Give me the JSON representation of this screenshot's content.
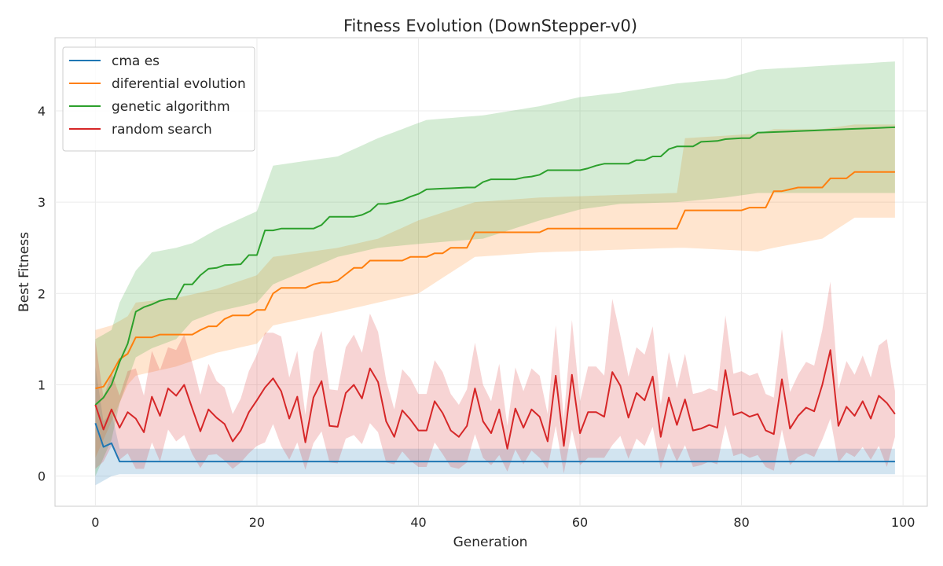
{
  "chart_data": {
    "type": "line",
    "title": "Fitness Evolution (DownStepper-v0)",
    "xlabel": "Generation",
    "ylabel": "Best Fitness",
    "xlim": [
      -5,
      103
    ],
    "ylim": [
      -0.33,
      4.8
    ],
    "xticks": [
      0,
      20,
      40,
      60,
      80,
      100
    ],
    "yticks": [
      0,
      1,
      2,
      3,
      4
    ],
    "grid": true,
    "legend_position": "top-left",
    "x_start": 0,
    "series": [
      {
        "name": "cma es",
        "color": "#1f77b4",
        "keyframes": [
          [
            0,
            0.58
          ],
          [
            1,
            0.32
          ],
          [
            2,
            0.36
          ],
          [
            3,
            0.16
          ],
          [
            99,
            0.16
          ]
        ],
        "band_keyframes": [
          [
            0,
            -0.1,
            1.2
          ],
          [
            1,
            -0.05,
            0.6
          ],
          [
            2,
            0.0,
            0.7
          ],
          [
            3,
            0.02,
            0.3
          ],
          [
            99,
            0.02,
            0.3
          ]
        ]
      },
      {
        "name": "diferential evolution",
        "color": "#ff7f0e",
        "keyframes": [
          [
            0,
            0.96
          ],
          [
            1,
            0.98
          ],
          [
            2,
            1.12
          ],
          [
            3,
            1.28
          ],
          [
            4,
            1.34
          ],
          [
            5,
            1.52
          ],
          [
            7,
            1.52
          ],
          [
            8,
            1.55
          ],
          [
            12,
            1.55
          ],
          [
            13,
            1.6
          ],
          [
            14,
            1.64
          ],
          [
            15,
            1.64
          ],
          [
            16,
            1.72
          ],
          [
            17,
            1.76
          ],
          [
            19,
            1.76
          ],
          [
            20,
            1.82
          ],
          [
            21,
            1.82
          ],
          [
            22,
            2.0
          ],
          [
            23,
            2.06
          ],
          [
            26,
            2.06
          ],
          [
            27,
            2.1
          ],
          [
            28,
            2.12
          ],
          [
            29,
            2.12
          ],
          [
            30,
            2.14
          ],
          [
            32,
            2.28
          ],
          [
            33,
            2.28
          ],
          [
            34,
            2.36
          ],
          [
            38,
            2.36
          ],
          [
            39,
            2.4
          ],
          [
            41,
            2.4
          ],
          [
            42,
            2.44
          ],
          [
            43,
            2.44
          ],
          [
            44,
            2.5
          ],
          [
            46,
            2.5
          ],
          [
            47,
            2.67
          ],
          [
            55,
            2.67
          ],
          [
            56,
            2.71
          ],
          [
            72,
            2.71
          ],
          [
            73,
            2.91
          ],
          [
            80,
            2.91
          ],
          [
            81,
            2.94
          ],
          [
            83,
            2.94
          ],
          [
            84,
            3.12
          ],
          [
            85,
            3.12
          ],
          [
            86,
            3.14
          ],
          [
            87,
            3.16
          ],
          [
            90,
            3.16
          ],
          [
            91,
            3.26
          ],
          [
            93,
            3.26
          ],
          [
            94,
            3.33
          ],
          [
            99,
            3.33
          ]
        ],
        "band_keyframes": [
          [
            0,
            0.2,
            1.6
          ],
          [
            2,
            0.6,
            1.65
          ],
          [
            4,
            1.0,
            1.75
          ],
          [
            5,
            1.1,
            1.9
          ],
          [
            10,
            1.2,
            1.95
          ],
          [
            15,
            1.35,
            2.05
          ],
          [
            20,
            1.45,
            2.2
          ],
          [
            22,
            1.65,
            2.4
          ],
          [
            30,
            1.8,
            2.5
          ],
          [
            35,
            1.9,
            2.6
          ],
          [
            40,
            2.0,
            2.8
          ],
          [
            47,
            2.4,
            3.0
          ],
          [
            55,
            2.45,
            3.05
          ],
          [
            72,
            2.5,
            3.1
          ],
          [
            73,
            2.5,
            3.7
          ],
          [
            82,
            2.46,
            3.75
          ],
          [
            84,
            2.5,
            3.8
          ],
          [
            90,
            2.6,
            3.8
          ],
          [
            94,
            2.83,
            3.85
          ],
          [
            99,
            2.83,
            3.85
          ]
        ]
      },
      {
        "name": "genetic algorithm",
        "color": "#2ca02c",
        "keyframes": [
          [
            0,
            0.78
          ],
          [
            1,
            0.86
          ],
          [
            2,
            1.0
          ],
          [
            3,
            1.25
          ],
          [
            4,
            1.45
          ],
          [
            5,
            1.8
          ],
          [
            6,
            1.85
          ],
          [
            7,
            1.88
          ],
          [
            8,
            1.92
          ],
          [
            9,
            1.94
          ],
          [
            10,
            1.94
          ],
          [
            11,
            2.1
          ],
          [
            12,
            2.1
          ],
          [
            13,
            2.2
          ],
          [
            14,
            2.27
          ],
          [
            15,
            2.28
          ],
          [
            16,
            2.31
          ],
          [
            18,
            2.32
          ],
          [
            19,
            2.42
          ],
          [
            20,
            2.42
          ],
          [
            21,
            2.69
          ],
          [
            22,
            2.69
          ],
          [
            23,
            2.71
          ],
          [
            27,
            2.71
          ],
          [
            28,
            2.75
          ],
          [
            29,
            2.84
          ],
          [
            32,
            2.84
          ],
          [
            33,
            2.86
          ],
          [
            34,
            2.9
          ],
          [
            35,
            2.98
          ],
          [
            36,
            2.98
          ],
          [
            37,
            3.0
          ],
          [
            38,
            3.02
          ],
          [
            39,
            3.06
          ],
          [
            40,
            3.09
          ],
          [
            41,
            3.14
          ],
          [
            46,
            3.16
          ],
          [
            47,
            3.16
          ],
          [
            48,
            3.22
          ],
          [
            49,
            3.25
          ],
          [
            52,
            3.25
          ],
          [
            53,
            3.27
          ],
          [
            54,
            3.28
          ],
          [
            55,
            3.3
          ],
          [
            56,
            3.35
          ],
          [
            60,
            3.35
          ],
          [
            61,
            3.37
          ],
          [
            62,
            3.4
          ],
          [
            63,
            3.42
          ],
          [
            66,
            3.42
          ],
          [
            67,
            3.46
          ],
          [
            68,
            3.46
          ],
          [
            69,
            3.5
          ],
          [
            70,
            3.5
          ],
          [
            71,
            3.58
          ],
          [
            72,
            3.61
          ],
          [
            74,
            3.61
          ],
          [
            75,
            3.66
          ],
          [
            77,
            3.67
          ],
          [
            78,
            3.69
          ],
          [
            80,
            3.7
          ],
          [
            81,
            3.7
          ],
          [
            82,
            3.76
          ],
          [
            99,
            3.82
          ]
        ],
        "band_keyframes": [
          [
            0,
            0.0,
            1.5
          ],
          [
            2,
            0.4,
            1.6
          ],
          [
            3,
            0.8,
            1.9
          ],
          [
            5,
            1.3,
            2.25
          ],
          [
            7,
            1.4,
            2.45
          ],
          [
            10,
            1.5,
            2.5
          ],
          [
            12,
            1.7,
            2.55
          ],
          [
            15,
            1.8,
            2.7
          ],
          [
            20,
            1.9,
            2.9
          ],
          [
            22,
            2.1,
            3.4
          ],
          [
            30,
            2.4,
            3.5
          ],
          [
            35,
            2.5,
            3.7
          ],
          [
            41,
            2.55,
            3.9
          ],
          [
            48,
            2.6,
            3.95
          ],
          [
            55,
            2.8,
            4.05
          ],
          [
            60,
            2.92,
            4.15
          ],
          [
            65,
            2.98,
            4.2
          ],
          [
            72,
            3.0,
            4.3
          ],
          [
            78,
            3.05,
            4.35
          ],
          [
            82,
            3.1,
            4.45
          ],
          [
            99,
            3.1,
            4.54
          ]
        ]
      },
      {
        "name": "random search",
        "color": "#d62728",
        "values": [
          0.78,
          0.51,
          0.73,
          0.53,
          0.7,
          0.63,
          0.48,
          0.87,
          0.66,
          0.96,
          0.88,
          1.0,
          0.74,
          0.49,
          0.73,
          0.64,
          0.57,
          0.38,
          0.5,
          0.7,
          0.83,
          0.97,
          1.07,
          0.93,
          0.63,
          0.87,
          0.37,
          0.86,
          1.04,
          0.55,
          0.54,
          0.91,
          1.0,
          0.85,
          1.18,
          1.03,
          0.6,
          0.43,
          0.72,
          0.62,
          0.5,
          0.5,
          0.82,
          0.69,
          0.5,
          0.43,
          0.55,
          0.96,
          0.6,
          0.47,
          0.73,
          0.3,
          0.74,
          0.53,
          0.73,
          0.65,
          0.38,
          1.1,
          0.33,
          1.11,
          0.47,
          0.7,
          0.7,
          0.65,
          1.14,
          0.99,
          0.64,
          0.91,
          0.83,
          1.09,
          0.43,
          0.86,
          0.56,
          0.84,
          0.5,
          0.52,
          0.56,
          0.53,
          1.16,
          0.67,
          0.7,
          0.65,
          0.68,
          0.5,
          0.46,
          1.06,
          0.52,
          0.66,
          0.75,
          0.71,
          1.0,
          1.38,
          0.55,
          0.76,
          0.66,
          0.82,
          0.63,
          0.88,
          0.8,
          0.68
        ],
        "band_halfwidths": [
          0.7,
          0.35,
          0.4,
          0.35,
          0.45,
          0.55,
          0.4,
          0.5,
          0.5,
          0.45,
          0.5,
          0.55,
          0.5,
          0.4,
          0.5,
          0.4,
          0.4,
          0.3,
          0.35,
          0.45,
          0.5,
          0.6,
          0.5,
          0.6,
          0.45,
          0.5,
          0.3,
          0.5,
          0.55,
          0.4,
          0.4,
          0.5,
          0.55,
          0.5,
          0.6,
          0.55,
          0.45,
          0.3,
          0.45,
          0.45,
          0.4,
          0.4,
          0.45,
          0.45,
          0.4,
          0.35,
          0.4,
          0.5,
          0.4,
          0.35,
          0.5,
          0.25,
          0.45,
          0.4,
          0.45,
          0.45,
          0.3,
          0.55,
          0.3,
          0.6,
          0.35,
          0.5,
          0.5,
          0.45,
          0.8,
          0.55,
          0.45,
          0.5,
          0.5,
          0.55,
          0.35,
          0.5,
          0.4,
          0.5,
          0.4,
          0.4,
          0.4,
          0.4,
          0.6,
          0.45,
          0.45,
          0.45,
          0.45,
          0.4,
          0.4,
          0.55,
          0.4,
          0.45,
          0.5,
          0.5,
          0.6,
          0.75,
          0.4,
          0.5,
          0.45,
          0.5,
          0.45,
          0.55,
          0.7,
          0.25
        ]
      }
    ]
  }
}
